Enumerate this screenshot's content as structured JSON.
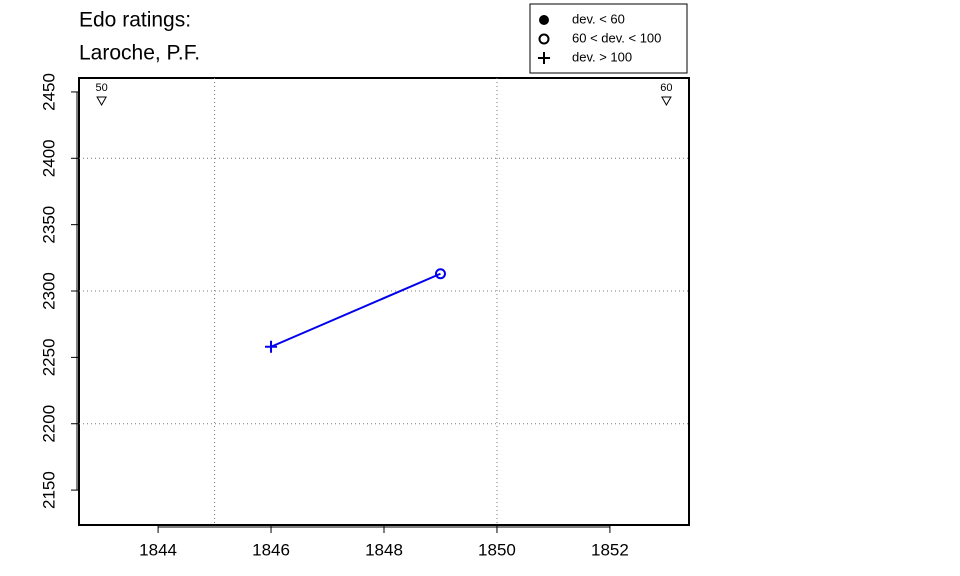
{
  "chart_data": {
    "type": "line",
    "title": "Edo ratings:",
    "subtitle": "Laroche, P.F.",
    "series": [
      {
        "color": "#0000ee",
        "x": [
          1846,
          1849
        ],
        "values": [
          2258,
          2313
        ],
        "symbols": [
          "plus",
          "circle"
        ]
      }
    ],
    "xlim": [
      1842.6,
      1853.4
    ],
    "ylim": [
      2123.7,
      2460.5
    ],
    "xticks": [
      1844,
      1846,
      1848,
      1850,
      1852
    ],
    "yticks": [
      2150,
      2200,
      2250,
      2300,
      2350,
      2400,
      2450
    ],
    "xgrid": [
      1845,
      1850
    ],
    "ygrid": [
      2200,
      2300,
      2400
    ],
    "markers": [
      {
        "x": 1843,
        "label": "50"
      },
      {
        "x": 1853,
        "label": "60"
      }
    ],
    "legend": [
      {
        "label": "dev. < 60",
        "symbol": "dot"
      },
      {
        "label": "60 < dev. < 100",
        "symbol": "circle"
      },
      {
        "label": "dev. > 100",
        "symbol": "plus"
      }
    ]
  }
}
